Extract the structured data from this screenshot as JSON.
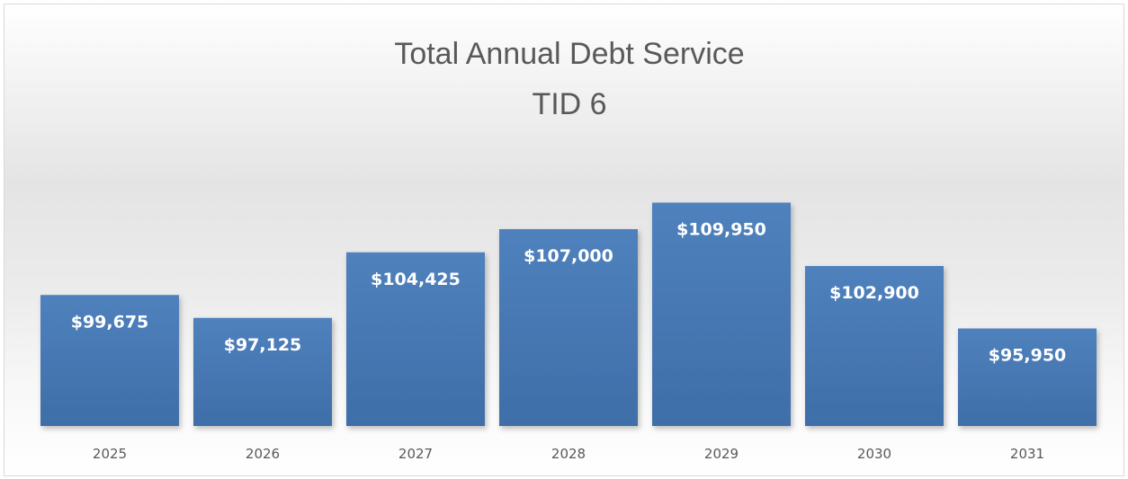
{
  "chart_data": {
    "type": "bar",
    "title": "Total Annual Debt Service",
    "subtitle": "TID 6",
    "xlabel": "",
    "ylabel": "",
    "categories": [
      "2025",
      "2026",
      "2027",
      "2028",
      "2029",
      "2030",
      "2031"
    ],
    "values": [
      99675,
      97125,
      104425,
      107000,
      109950,
      102900,
      95950
    ],
    "data_labels": [
      "$99,675",
      "$97,125",
      "$104,425",
      "$107,000",
      "$109,950",
      "$102,900",
      "$95,950"
    ],
    "grid": false,
    "legend": "none",
    "bar_color_top": "#4F81BD",
    "bar_color_bottom": "#3F6EA8"
  }
}
